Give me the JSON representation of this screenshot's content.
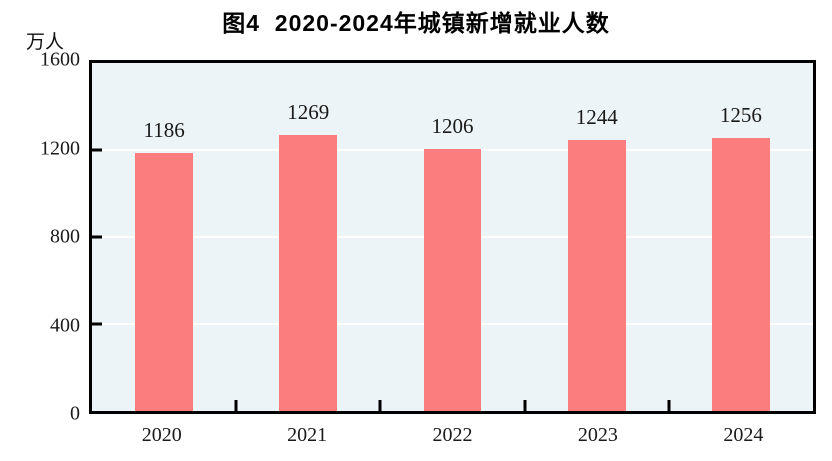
{
  "figure": {
    "title": "图4  2020-2024年城镇新增就业人数",
    "unit_label": "万人"
  },
  "colors": {
    "bar": "#FB7D7D",
    "plot_background": "#EDF4F7",
    "gridline": "#FFFFFF",
    "axis": "#000000",
    "text": "#1a1a1a"
  },
  "chart_data": {
    "type": "bar",
    "categories": [
      "2020",
      "2021",
      "2022",
      "2023",
      "2024"
    ],
    "values": [
      1186,
      1269,
      1206,
      1244,
      1256
    ],
    "title": "图4  2020-2024年城镇新增就业人数",
    "xlabel": "",
    "ylabel": "万人",
    "ylim": [
      0,
      1600
    ],
    "yticks": [
      0,
      400,
      800,
      1200,
      1600
    ],
    "grid": "horizontal",
    "legend": "none",
    "bar_labels": true
  }
}
